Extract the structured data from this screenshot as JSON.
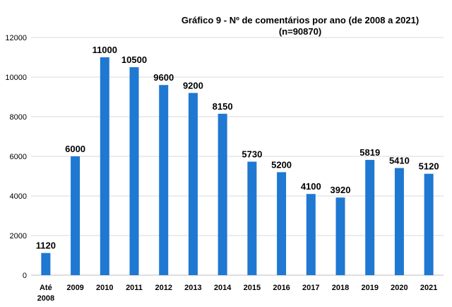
{
  "chart_data": {
    "type": "bar",
    "title": "Gráfico  9 - Nº de comentários por ano (de 2008 a 2021)",
    "subtitle": "(n=90870)",
    "categories": [
      [
        "Até",
        "2008"
      ],
      [
        "2009"
      ],
      [
        "2010"
      ],
      [
        "2011"
      ],
      [
        "2012"
      ],
      [
        "2013"
      ],
      [
        "2014"
      ],
      [
        "2015"
      ],
      [
        "2016"
      ],
      [
        "2017"
      ],
      [
        "2018"
      ],
      [
        "2019"
      ],
      [
        "2020"
      ],
      [
        "2021"
      ]
    ],
    "values": [
      1120,
      6000,
      11000,
      10500,
      9600,
      9200,
      8150,
      5730,
      5200,
      4100,
      3920,
      5819,
      5410,
      5120
    ],
    "data_labels": [
      "1120",
      "6000",
      "11000",
      "10500",
      "9600",
      "9200",
      "8150",
      "5730",
      "5200",
      "4100",
      "3920",
      "5819",
      "5410",
      "5120"
    ],
    "ylim": [
      0,
      12000
    ],
    "yticks": [
      0,
      2000,
      4000,
      6000,
      8000,
      10000,
      12000
    ],
    "grid": true,
    "bar_color": "#1f78d1"
  }
}
